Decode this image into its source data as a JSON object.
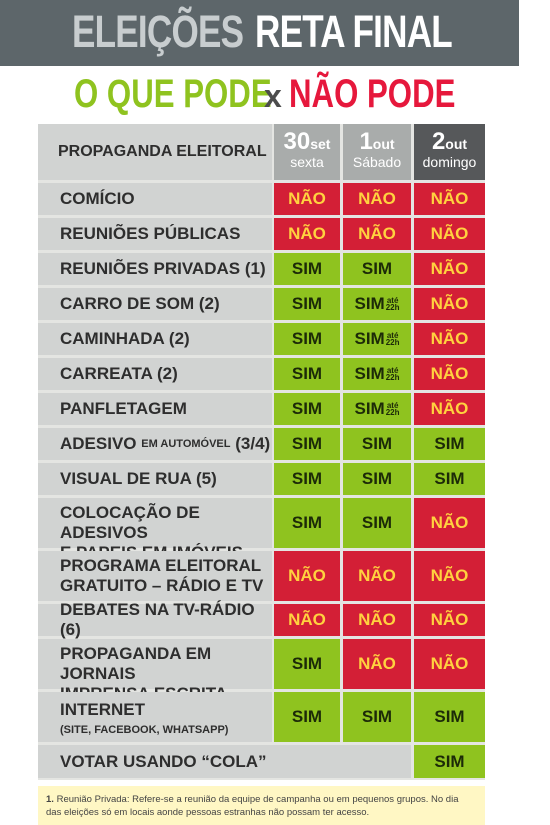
{
  "banner": {
    "title_left": "ELEIÇÕES",
    "title_right": "RETA FINAL"
  },
  "subtitle": {
    "pode": "O QUE PODE",
    "x": "x",
    "nao_pode": "NÃO PODE"
  },
  "header": {
    "label": "PROPAGANDA ELEITORAL",
    "days": [
      {
        "num": "30",
        "month": "set",
        "weekday": "sexta"
      },
      {
        "num": "1",
        "month": "out",
        "weekday": "Sábado"
      },
      {
        "num": "2",
        "month": "out",
        "weekday": "domingo"
      }
    ]
  },
  "ate_label": {
    "top": "até",
    "bottom": "22h"
  },
  "rows": [
    {
      "label": "COMÍCIO",
      "values": [
        "NÃO",
        "NÃO",
        "NÃO"
      ]
    },
    {
      "label": "REUNIÕES PÚBLICAS",
      "values": [
        "NÃO",
        "NÃO",
        "NÃO"
      ]
    },
    {
      "label": "REUNIÕES PRIVADAS (1)",
      "values": [
        "SIM",
        "SIM",
        "NÃO"
      ]
    },
    {
      "label": "CARRO DE SOM (2)",
      "values": [
        "SIM",
        "SIM",
        "NÃO"
      ]
    },
    {
      "label": "CAMINHADA (2)",
      "values": [
        "SIM",
        "SIM",
        "NÃO"
      ]
    },
    {
      "label": "CARREATA (2)",
      "values": [
        "SIM",
        "SIM",
        "NÃO"
      ]
    },
    {
      "label": "PANFLETAGEM",
      "values": [
        "SIM",
        "SIM",
        "NÃO"
      ]
    },
    {
      "label_a": "ADESIVO",
      "label_small": "EM AUTOMÓVEL",
      "label_b": "(3/4)",
      "values": [
        "SIM",
        "SIM",
        "SIM"
      ]
    },
    {
      "label": "VISUAL DE RUA (5)",
      "values": [
        "SIM",
        "SIM",
        "SIM"
      ]
    },
    {
      "line1": "COLOCAÇÃO DE ADESIVOS",
      "line2": "E PAPEIS EM IMÓVEIS",
      "values": [
        "SIM",
        "SIM",
        "NÃO"
      ]
    },
    {
      "line1": "PROGRAMA ELEITORAL",
      "line2": "GRATUITO – RÁDIO E TV",
      "values": [
        "NÃO",
        "NÃO",
        "NÃO"
      ]
    },
    {
      "label": "DEBATES NA TV-RÁDIO (6)",
      "values": [
        "NÃO",
        "NÃO",
        "NÃO"
      ]
    },
    {
      "line1": "PROPAGANDA EM JORNAIS",
      "line2": "IMPRENSA ESCRITA",
      "values": [
        "SIM",
        "NÃO",
        "NÃO"
      ]
    },
    {
      "line1": "INTERNET",
      "sub": "(SITE, FACEBOOK, WHATSAPP)",
      "values": [
        "SIM",
        "SIM",
        "SIM"
      ]
    },
    {
      "label": "VOTAR USANDO “COLA”",
      "values": [
        "",
        "",
        "SIM"
      ]
    }
  ],
  "footnote": {
    "num": "1.",
    "text": "Reunião Privada: Refere-se a reunião da equipe de campanha ou em pequenos grupos. No dia das eleições só em locais aonde pessoas estranhas não possam ter acesso."
  },
  "colors": {
    "sim": "#8fc31f",
    "nao": "#d31f36",
    "banner": "#5d666a",
    "label_bg": "#d1d3d2"
  }
}
